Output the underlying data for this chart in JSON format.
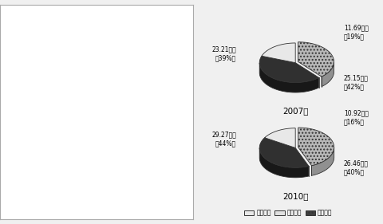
{
  "year2007": {
    "values": [
      23.21,
      25.15,
      11.69
    ],
    "percents": [
      39,
      42,
      19
    ],
    "label0": "23.21万人\n（39%）",
    "label1": "25.15万人\n（42%）",
    "label2": "11.69万人\n（19%）",
    "year_label": "2007年"
  },
  "year2010": {
    "values": [
      29.27,
      26.46,
      10.92
    ],
    "percents": [
      44,
      40,
      16
    ],
    "label0": "29.27万人\n（44%）",
    "label1": "26.46万人\n（40%）",
    "label2": "10.92万人\n（16%）",
    "year_label": "2010年"
  },
  "legend_labels": [
    "第一产业",
    "第二产业",
    "第三产业"
  ],
  "bg_color": "#f0f0f0",
  "panel_bg": "#ffffff",
  "map_bg": "#e8e8e8"
}
